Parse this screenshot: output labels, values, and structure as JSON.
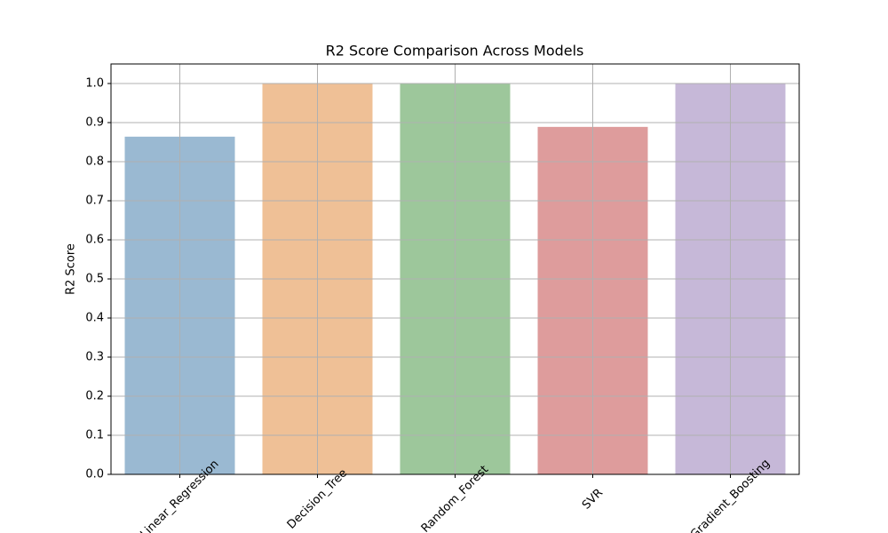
{
  "chart_data": {
    "type": "bar",
    "title": "R2 Score Comparison Across Models",
    "y_label": "R2 Score",
    "categories": [
      "Linear_Regression",
      "Decision_Tree",
      "Random_Forest",
      "SVR",
      "Gradient_Boosting"
    ],
    "values": [
      0.864,
      1.0,
      1.0,
      0.889,
      1.0
    ],
    "colors": [
      "#9ab9d2",
      "#efc096",
      "#9dc79b",
      "#de9c9c",
      "#c6b8d8"
    ],
    "ylim": [
      0,
      1.05
    ],
    "yticks": [
      {
        "value": 0,
        "label": "0.0"
      },
      0.1,
      0.2,
      0.3,
      0.4,
      0.5,
      0.6,
      0.7,
      0.8,
      0.9,
      {
        "value": 1,
        "label": "1.0"
      }
    ],
    "grid": true
  }
}
